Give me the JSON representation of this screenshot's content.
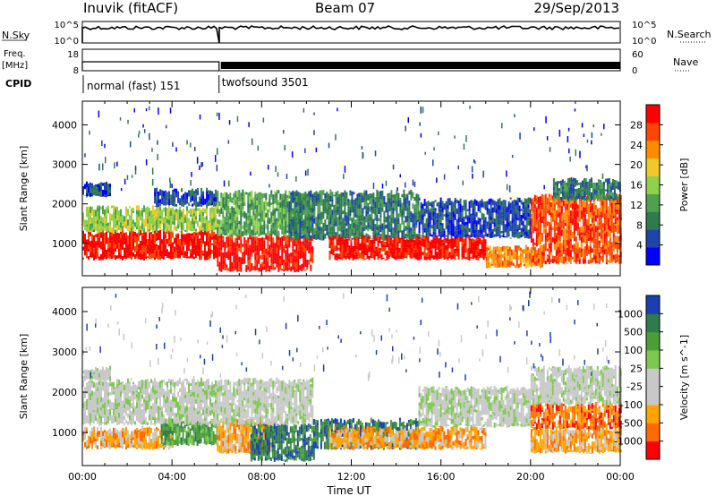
{
  "header": {
    "station": "Inuvik (fitACF)",
    "beam": "Beam 07",
    "date": "29/Sep/2013"
  },
  "params": {
    "nsky_label": "N.Sky",
    "nsearch_label": "N.Search",
    "nave_label": "Nave",
    "freq_label": "Freq.",
    "freq_unit": "[MHz]",
    "cpid_label": "CPID",
    "scale_top": "10^5",
    "scale_bottom": "10^0",
    "freq_ticks": [
      "18",
      "8"
    ],
    "nave_ticks": [
      "60",
      "0"
    ],
    "cpid_segments": [
      "normal (fast) 151",
      "twofsound 3501"
    ],
    "cpid_switch_hour": 6.1
  },
  "colors": {
    "power": [
      "#0000ff",
      "#1f45a8",
      "#2e7b4e",
      "#4fa04f",
      "#8fd24a",
      "#f0c828",
      "#ff8c00",
      "#ff4500",
      "#ff0000"
    ],
    "velocity": [
      "#1a3fb0",
      "#2e7b4e",
      "#4a9e38",
      "#7ec850",
      "#c8c8c8",
      "#c8c8c8",
      "#ffa500",
      "#ff6a00",
      "#ff0000"
    ]
  },
  "chart_data": [
    {
      "type": "heatmap",
      "panel": "power",
      "x_range": [
        0,
        24
      ],
      "x_ticks": [
        "00:00",
        "04:00",
        "08:00",
        "12:00",
        "16:00",
        "20:00",
        "00:00"
      ],
      "xlabel": "Time UT",
      "ylabel": "Slant Range [km]",
      "y_range": [
        180,
        4600
      ],
      "y_ticks": [
        1000,
        2000,
        3000,
        4000
      ],
      "colorbar": {
        "label": "Power [dB]",
        "ticks": [
          4,
          8,
          12,
          16,
          20,
          24,
          28
        ],
        "range": [
          0,
          32
        ]
      },
      "bands": [
        {
          "t0": 0.0,
          "t1": 6.0,
          "r0": 600,
          "r1": 1300,
          "level": 8
        },
        {
          "t0": 0.0,
          "t1": 6.0,
          "r0": 1300,
          "r1": 1900,
          "level": 4
        },
        {
          "t0": 0.0,
          "t1": 1.2,
          "r0": 2200,
          "r1": 2500,
          "level": 1
        },
        {
          "t0": 3.2,
          "t1": 6.0,
          "r0": 1950,
          "r1": 2350,
          "level": 1
        },
        {
          "t0": 6.0,
          "t1": 10.3,
          "r0": 300,
          "r1": 1200,
          "level": 8
        },
        {
          "t0": 6.0,
          "t1": 10.3,
          "r0": 1200,
          "r1": 2300,
          "level": 3
        },
        {
          "t0": 9.2,
          "t1": 15.0,
          "r0": 1100,
          "r1": 2300,
          "level": 2
        },
        {
          "t0": 11.0,
          "t1": 18.0,
          "r0": 600,
          "r1": 1150,
          "level": 8
        },
        {
          "t0": 15.0,
          "t1": 20.0,
          "r0": 1150,
          "r1": 2100,
          "level": 1
        },
        {
          "t0": 18.0,
          "t1": 20.5,
          "r0": 400,
          "r1": 900,
          "level": 6
        },
        {
          "t0": 20.0,
          "t1": 24.0,
          "r0": 500,
          "r1": 2200,
          "level": 7
        },
        {
          "t0": 21.0,
          "t1": 24.0,
          "r0": 2100,
          "r1": 2600,
          "level": 2
        }
      ]
    },
    {
      "type": "heatmap",
      "panel": "velocity",
      "x_range": [
        0,
        24
      ],
      "x_ticks": [
        "00:00",
        "04:00",
        "08:00",
        "12:00",
        "16:00",
        "20:00",
        "00:00"
      ],
      "xlabel": "Time UT",
      "ylabel": "Slant Range [km]",
      "y_range": [
        180,
        4600
      ],
      "y_ticks": [
        1000,
        2000,
        3000,
        4000
      ],
      "colorbar": {
        "label": "Velocity [m s^-1]",
        "ticks": [
          "1000",
          "500",
          "100",
          "25",
          "-25",
          "-100",
          "-500",
          "-1000"
        ]
      },
      "bands": [
        {
          "t0": 0.0,
          "t1": 4.0,
          "r0": 600,
          "r1": 1100,
          "level": 6
        },
        {
          "t0": 3.5,
          "t1": 6.0,
          "r0": 700,
          "r1": 1300,
          "level": 2
        },
        {
          "t0": 0.0,
          "t1": 6.0,
          "r0": 1200,
          "r1": 2300,
          "level": 4
        },
        {
          "t0": 0.0,
          "t1": 1.2,
          "r0": 2300,
          "r1": 2600,
          "level": 4
        },
        {
          "t0": 6.0,
          "t1": 8.5,
          "r0": 500,
          "r1": 1300,
          "level": 6
        },
        {
          "t0": 7.5,
          "t1": 10.3,
          "r0": 300,
          "r1": 1200,
          "level": 1
        },
        {
          "t0": 6.0,
          "t1": 10.3,
          "r0": 1200,
          "r1": 2300,
          "level": 4
        },
        {
          "t0": 10.3,
          "t1": 15.0,
          "r0": 600,
          "r1": 1300,
          "level": 1
        },
        {
          "t0": 11.0,
          "t1": 18.0,
          "r0": 600,
          "r1": 1100,
          "level": 6
        },
        {
          "t0": 15.0,
          "t1": 20.0,
          "r0": 1150,
          "r1": 2100,
          "level": 4
        },
        {
          "t0": 20.0,
          "t1": 24.0,
          "r0": 500,
          "r1": 1100,
          "level": 6
        },
        {
          "t0": 20.0,
          "t1": 24.0,
          "r0": 1100,
          "r1": 1700,
          "level": 7
        },
        {
          "t0": 20.0,
          "t1": 24.0,
          "r0": 1700,
          "r1": 2600,
          "level": 4
        }
      ]
    }
  ]
}
